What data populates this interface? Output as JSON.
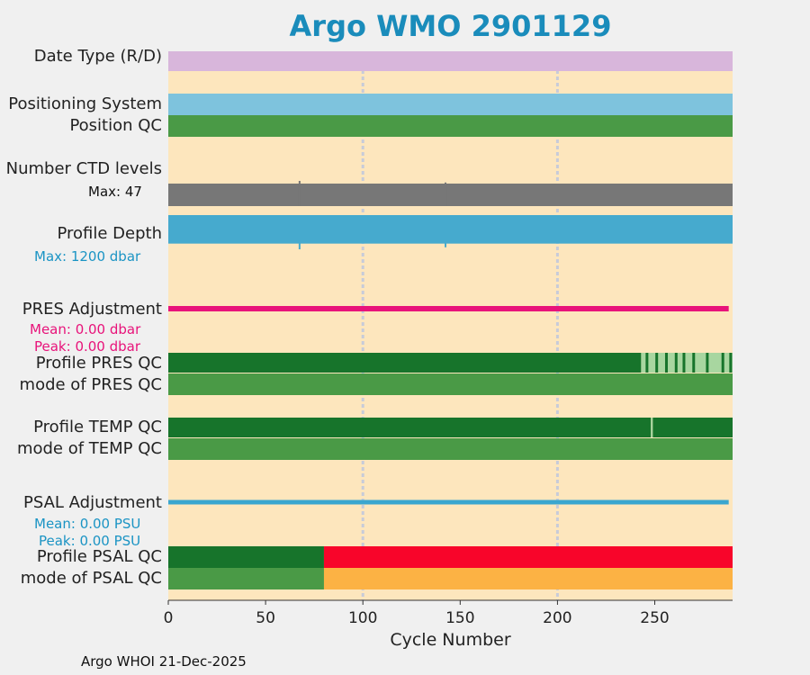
{
  "title": "Argo WMO 2901129",
  "footer": "Argo WHOI 21-Dec-2025",
  "colors": {
    "background": "#fde6bd",
    "date_type": "#d8b6db",
    "positioning": "#7ec3dd",
    "qc_green": "#4a9a46",
    "qc_dark_green": "#17742b",
    "qc_light_green": "#a8d6a0",
    "ctd": "#777777",
    "profile_depth": "#46aace",
    "pres_adjust": "#e8137a",
    "psal_adjust": "#3aa6cf",
    "psal_bad": "#f8052a",
    "psal_mode_bad": "#fcb244",
    "title": "#1a8cbb",
    "grid": "#c7cbd9"
  },
  "labels": {
    "date_type": "Date Type (R/D)",
    "positioning": "Positioning System",
    "position_qc": "Position QC",
    "ctd_levels": "Number CTD levels",
    "ctd_max": "Max: 47",
    "profile_depth": "Profile Depth",
    "depth_max": "Max: 1200 dbar",
    "pres_adjust": "PRES Adjustment",
    "pres_mean": "Mean: 0.00 dbar",
    "pres_peak": "Peak: 0.00 dbar",
    "profile_pres_qc": "Profile PRES QC",
    "mode_pres_qc": "mode of PRES QC",
    "profile_temp_qc": "Profile TEMP QC",
    "mode_temp_qc": "mode of TEMP QC",
    "psal_adjust": "PSAL Adjustment",
    "psal_mean": "Mean: 0.00 PSU",
    "psal_peak": "Peak: 0.00 PSU",
    "profile_psal_qc": "Profile PSAL QC",
    "mode_psal_qc": "mode of PSAL QC"
  },
  "chart_data": {
    "type": "bar",
    "xlabel": "Cycle Number",
    "xlim": [
      0,
      290
    ],
    "xticks": [
      0,
      50,
      100,
      150,
      200,
      250
    ],
    "grid_x": [
      100,
      200
    ],
    "ctd_levels": {
      "max": 47,
      "typical": 42,
      "spikes": [
        {
          "cycle": 67,
          "value": 47
        },
        {
          "cycle": 142,
          "value": 44
        }
      ]
    },
    "profile_depth": {
      "max_dbar": 1200,
      "typical_dbar": 1000,
      "spikes": [
        {
          "cycle": 67,
          "value": 1200
        },
        {
          "cycle": 142,
          "value": 1130
        }
      ]
    },
    "pres_adjustment": {
      "mean": 0.0,
      "peak": 0.0,
      "unit": "dbar"
    },
    "psal_adjustment": {
      "mean": 0.0,
      "peak": 0.0,
      "unit": "PSU"
    },
    "profile_pres_qc_segments": [
      {
        "from": 0,
        "to": 243,
        "grade": "A"
      },
      {
        "from": 243,
        "to": 290,
        "grade": "mixed A/B"
      }
    ],
    "profile_temp_qc_segments": [
      {
        "from": 0,
        "to": 248,
        "grade": "A"
      },
      {
        "from": 248,
        "to": 249,
        "grade": "B"
      },
      {
        "from": 249,
        "to": 290,
        "grade": "A"
      }
    ],
    "profile_psal_qc_segments": [
      {
        "from": 0,
        "to": 80,
        "grade": "A"
      },
      {
        "from": 80,
        "to": 290,
        "grade": "F"
      }
    ],
    "mode_psal_qc_segments": [
      {
        "from": 0,
        "to": 80,
        "qc": "1"
      },
      {
        "from": 80,
        "to": 290,
        "qc": "3"
      }
    ]
  }
}
